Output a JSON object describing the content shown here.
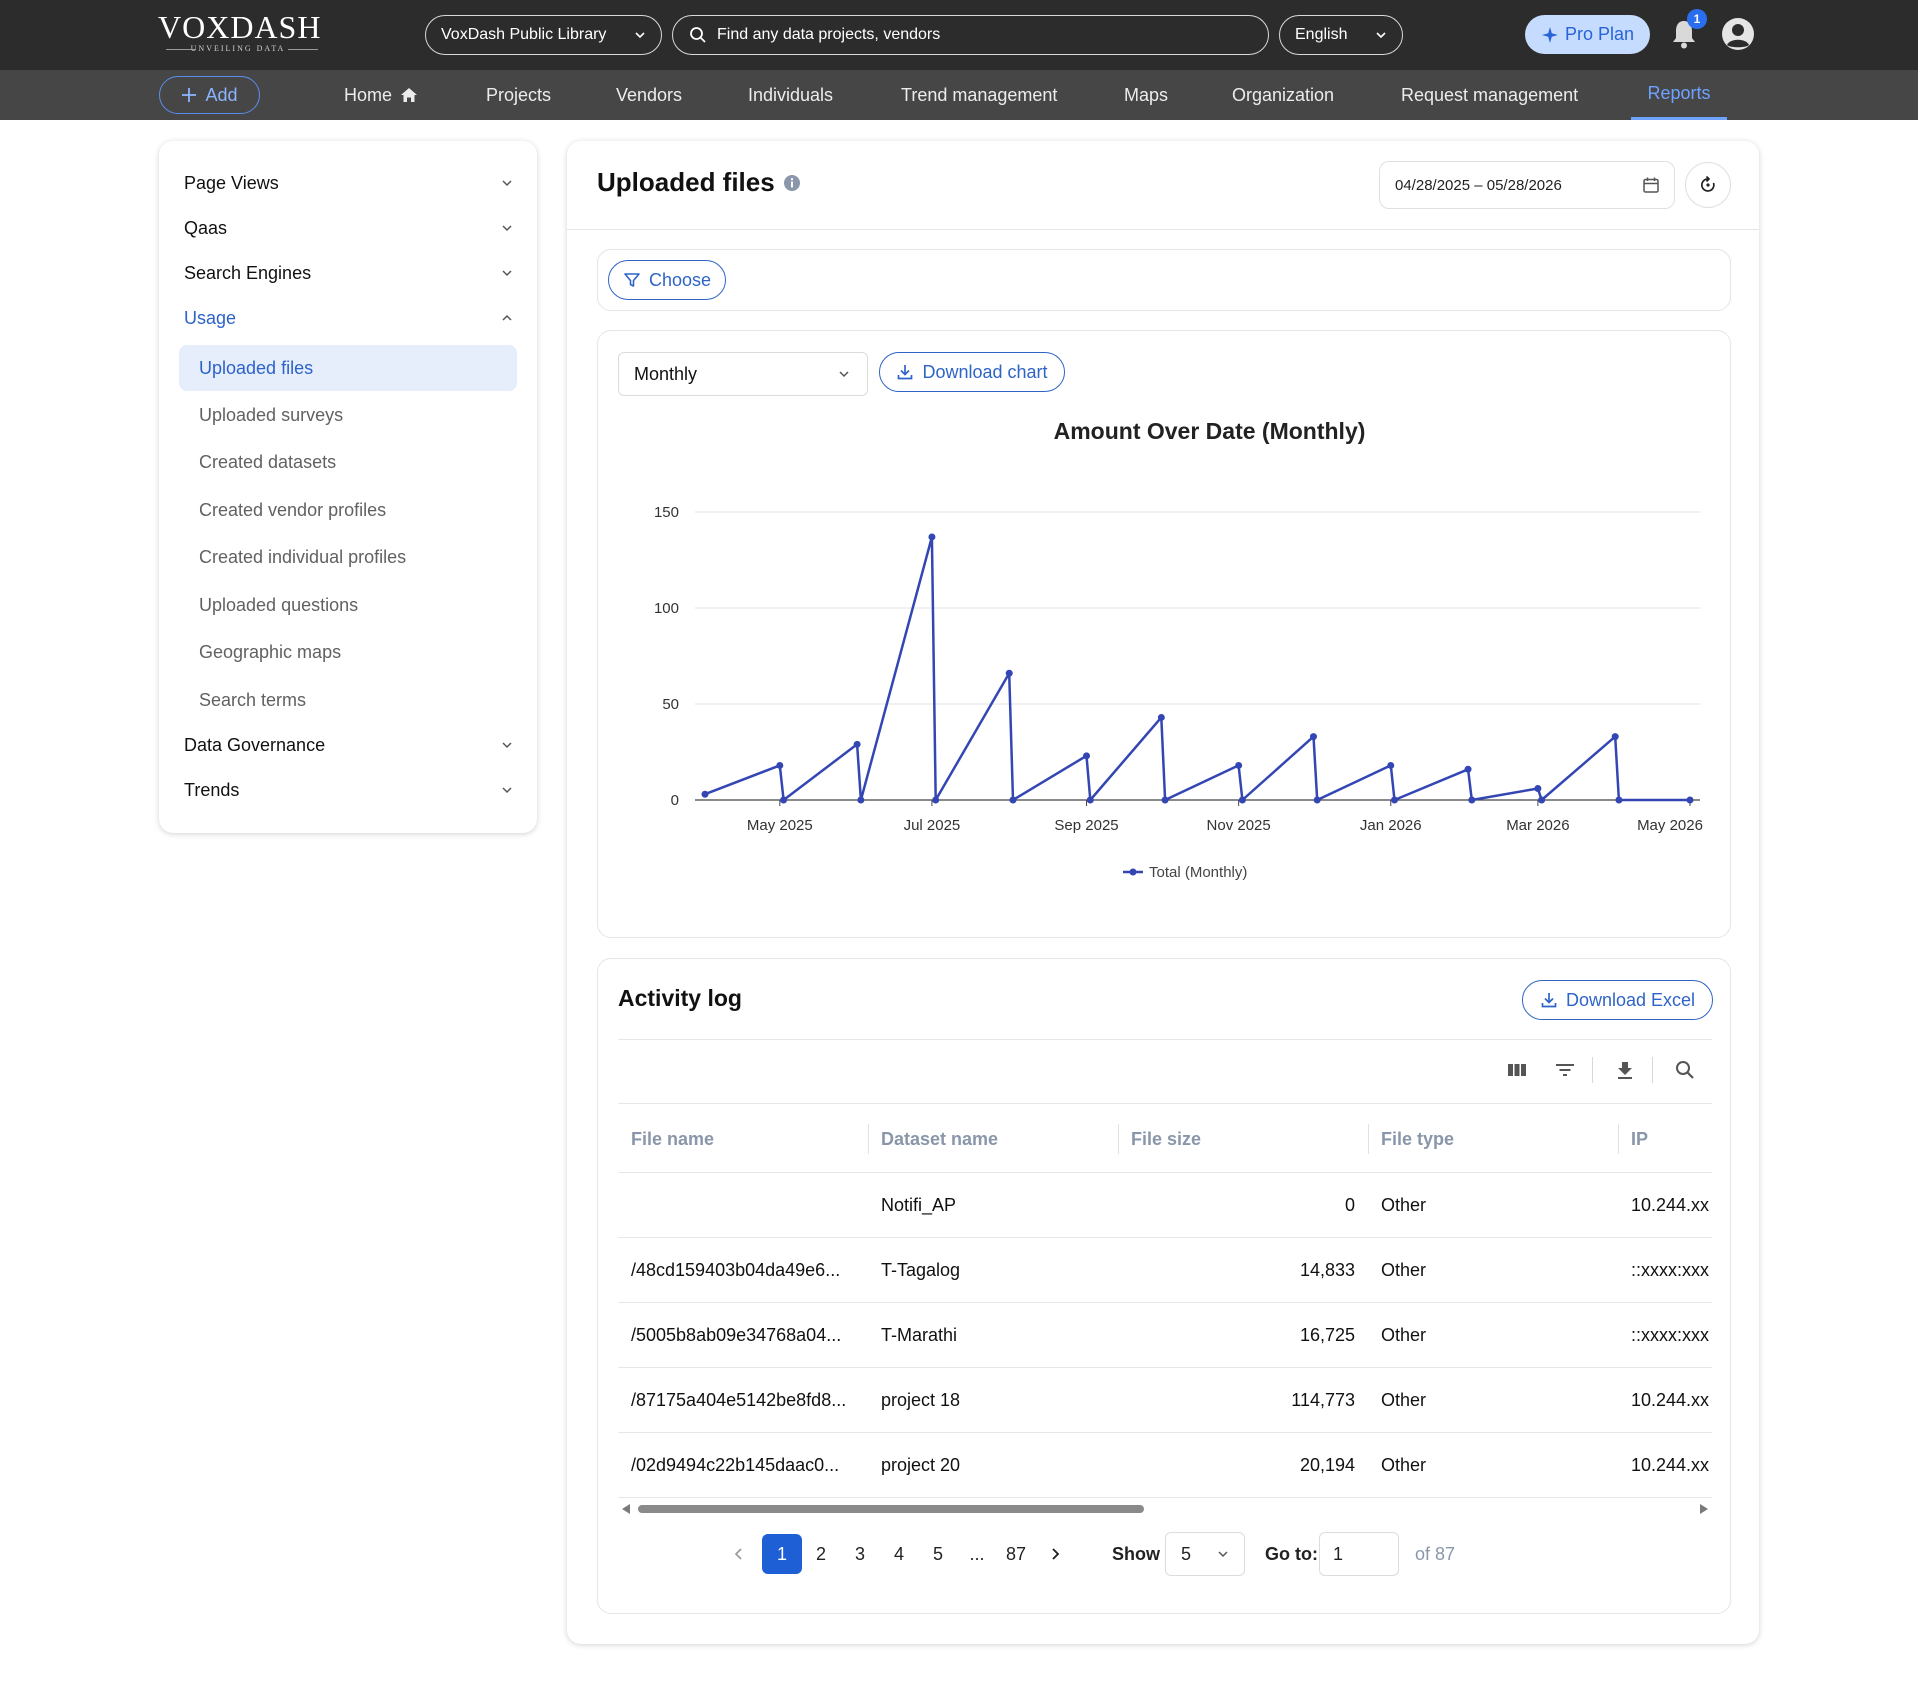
{
  "header": {
    "logo_name": "VOXDASH",
    "logo_tagline": "UNVEILING DATA",
    "library_select": "VoxDash Public Library",
    "search_placeholder": "Find any data projects, vendors",
    "language": "English",
    "pro_plan": "Pro Plan",
    "notification_count": "1"
  },
  "nav": {
    "add": "Add",
    "items": [
      "Home",
      "Projects",
      "Vendors",
      "Individuals",
      "Trend management",
      "Maps",
      "Organization",
      "Request management",
      "Reports"
    ],
    "active": "Reports"
  },
  "sidebar": {
    "groups": [
      {
        "label": "Page Views",
        "expanded": false
      },
      {
        "label": "Qaas",
        "expanded": false
      },
      {
        "label": "Search Engines",
        "expanded": false
      },
      {
        "label": "Usage",
        "expanded": true
      },
      {
        "label": "Data Governance",
        "expanded": false
      },
      {
        "label": "Trends",
        "expanded": false
      }
    ],
    "usage_items": [
      "Uploaded files",
      "Uploaded surveys",
      "Created datasets",
      "Created vendor profiles",
      "Created individual profiles",
      "Uploaded questions",
      "Geographic maps",
      "Search terms"
    ],
    "active_item": "Uploaded files"
  },
  "main": {
    "title": "Uploaded files",
    "date_range": "04/28/2025 – 05/28/2026",
    "choose": "Choose",
    "period": "Monthly",
    "download_chart": "Download chart"
  },
  "chart_data": {
    "type": "line",
    "title": "Amount Over Date (Monthly)",
    "xlabel": "",
    "ylabel": "",
    "ylim": [
      0,
      150
    ],
    "yticks": [
      0,
      50,
      100,
      150
    ],
    "xticks": [
      "May 2025",
      "Jul 2025",
      "Sep 2025",
      "Nov 2025",
      "Jan 2026",
      "Mar 2026",
      "May 2026"
    ],
    "legend": "bottom-center",
    "grid": true,
    "series": [
      {
        "name": "Total (Monthly)",
        "color": "#3346b4",
        "points": [
          {
            "x": "2025-04-28",
            "y": 3
          },
          {
            "x": "2025-05-28",
            "y": 18
          },
          {
            "x": "2025-05-28",
            "y": 0
          },
          {
            "x": "2025-06-28",
            "y": 29
          },
          {
            "x": "2025-06-28",
            "y": 0
          },
          {
            "x": "2025-07-28",
            "y": 137
          },
          {
            "x": "2025-07-28",
            "y": 0
          },
          {
            "x": "2025-08-28",
            "y": 66
          },
          {
            "x": "2025-08-28",
            "y": 0
          },
          {
            "x": "2025-09-28",
            "y": 23
          },
          {
            "x": "2025-09-28",
            "y": 0
          },
          {
            "x": "2025-10-28",
            "y": 43
          },
          {
            "x": "2025-10-28",
            "y": 0
          },
          {
            "x": "2025-11-28",
            "y": 18
          },
          {
            "x": "2025-11-28",
            "y": 0
          },
          {
            "x": "2025-12-28",
            "y": 33
          },
          {
            "x": "2025-12-28",
            "y": 0
          },
          {
            "x": "2026-01-28",
            "y": 18
          },
          {
            "x": "2026-01-28",
            "y": 0
          },
          {
            "x": "2026-02-28",
            "y": 16
          },
          {
            "x": "2026-02-28",
            "y": 0
          },
          {
            "x": "2026-03-28",
            "y": 6
          },
          {
            "x": "2026-03-28",
            "y": 0
          },
          {
            "x": "2026-04-28",
            "y": 33
          },
          {
            "x": "2026-04-28",
            "y": 0
          },
          {
            "x": "2026-05-28",
            "y": 0
          }
        ]
      }
    ]
  },
  "activity_log": {
    "title": "Activity log",
    "download_excel": "Download Excel",
    "columns": [
      "File name",
      "Dataset name",
      "File size",
      "File type",
      "IP"
    ],
    "rows": [
      {
        "file_name": "",
        "dataset": "Notifi_AP",
        "size": "0",
        "type": "Other",
        "ip": "10.244.xx"
      },
      {
        "file_name": "/48cd159403b04da49e6...",
        "dataset": "T-Tagalog",
        "size": "14,833",
        "type": "Other",
        "ip": "::xxxx:xxx"
      },
      {
        "file_name": "/5005b8ab09e34768a04...",
        "dataset": "T-Marathi",
        "size": "16,725",
        "type": "Other",
        "ip": "::xxxx:xxx"
      },
      {
        "file_name": "/87175a404e5142be8fd8...",
        "dataset": "project 18",
        "size": "114,773",
        "type": "Other",
        "ip": "10.244.xx"
      },
      {
        "file_name": "/02d9494c22b145daac0...",
        "dataset": "project 20",
        "size": "20,194",
        "type": "Other",
        "ip": "10.244.xx"
      }
    ],
    "pagination": {
      "pages": [
        "1",
        "2",
        "3",
        "4",
        "5",
        "...",
        "87"
      ],
      "current": "1",
      "show_label": "Show",
      "page_size": "5",
      "goto_label": "Go to:",
      "goto_value": "1",
      "of_label": "of 87"
    }
  },
  "colors": {
    "accent": "#2f64c7",
    "topbar": "#2c2c2c",
    "navbar": "#464646",
    "series": "#3346b4"
  }
}
